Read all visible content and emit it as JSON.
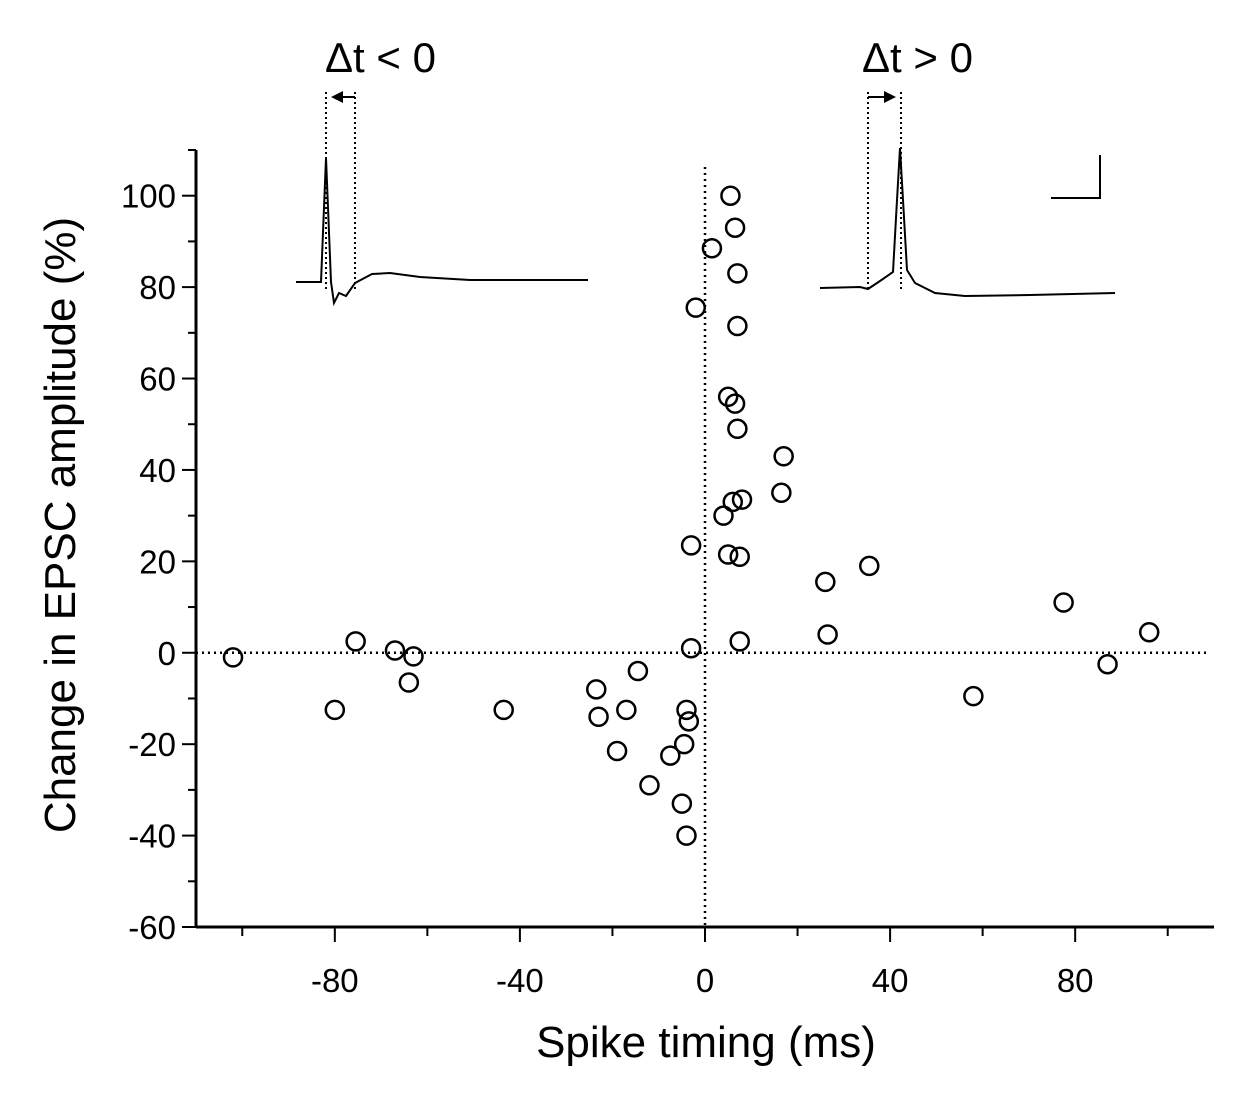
{
  "chart_data": {
    "type": "scatter",
    "xlabel": "Spike timing (ms)",
    "ylabel": "Change in EPSC amplitude (%)",
    "xlim": [
      -110,
      110
    ],
    "ylim": [
      -60,
      110
    ],
    "x_ticks": [
      -80,
      -40,
      0,
      40,
      80
    ],
    "x_tick_labels": [
      "-80",
      "-40",
      "0",
      "40",
      "80"
    ],
    "y_ticks": [
      -60,
      -40,
      -20,
      0,
      20,
      40,
      60,
      80,
      100
    ],
    "y_tick_labels": [
      "-60",
      "-40",
      "-20",
      "0",
      "20",
      "40",
      "60",
      "80",
      "100"
    ],
    "reference_lines": [
      "y=0",
      "x=0"
    ],
    "marker": "open-circle",
    "points": [
      {
        "x": -102,
        "y": -1
      },
      {
        "x": -80,
        "y": -12.5
      },
      {
        "x": -75.5,
        "y": 2.5
      },
      {
        "x": -67,
        "y": 0.5
      },
      {
        "x": -63,
        "y": -0.8
      },
      {
        "x": -64,
        "y": -6.5
      },
      {
        "x": -43.5,
        "y": -12.5
      },
      {
        "x": -23.5,
        "y": -8
      },
      {
        "x": -23,
        "y": -14
      },
      {
        "x": -19,
        "y": -21.5
      },
      {
        "x": -17,
        "y": -12.5
      },
      {
        "x": -14.5,
        "y": -4
      },
      {
        "x": -12,
        "y": -29
      },
      {
        "x": -7.5,
        "y": -22.5
      },
      {
        "x": -5,
        "y": -33
      },
      {
        "x": -4.5,
        "y": -20
      },
      {
        "x": -4,
        "y": -12.5
      },
      {
        "x": -4,
        "y": -40
      },
      {
        "x": -3.5,
        "y": -15
      },
      {
        "x": -3,
        "y": 1
      },
      {
        "x": -3,
        "y": 23.5
      },
      {
        "x": -2,
        "y": 75.5
      },
      {
        "x": 1.5,
        "y": 88.5
      },
      {
        "x": 4,
        "y": 30
      },
      {
        "x": 5,
        "y": 21.5
      },
      {
        "x": 5,
        "y": 56
      },
      {
        "x": 5.5,
        "y": 100
      },
      {
        "x": 6,
        "y": 33
      },
      {
        "x": 6.5,
        "y": 54.5
      },
      {
        "x": 6.5,
        "y": 93
      },
      {
        "x": 7,
        "y": 49
      },
      {
        "x": 7,
        "y": 83
      },
      {
        "x": 7,
        "y": 71.5
      },
      {
        "x": 7.5,
        "y": 21
      },
      {
        "x": 7.5,
        "y": 2.5
      },
      {
        "x": 8,
        "y": 33.5
      },
      {
        "x": 16.5,
        "y": 35
      },
      {
        "x": 17,
        "y": 43
      },
      {
        "x": 26,
        "y": 15.5
      },
      {
        "x": 26.5,
        "y": 4
      },
      {
        "x": 35.5,
        "y": 19
      },
      {
        "x": 58,
        "y": -9.5
      },
      {
        "x": 77.5,
        "y": 11
      },
      {
        "x": 87,
        "y": -2.5
      },
      {
        "x": 96,
        "y": 4.5
      }
    ]
  },
  "insets": {
    "left": {
      "label": "Δt < 0"
    },
    "right": {
      "label": "Δt > 0"
    }
  }
}
